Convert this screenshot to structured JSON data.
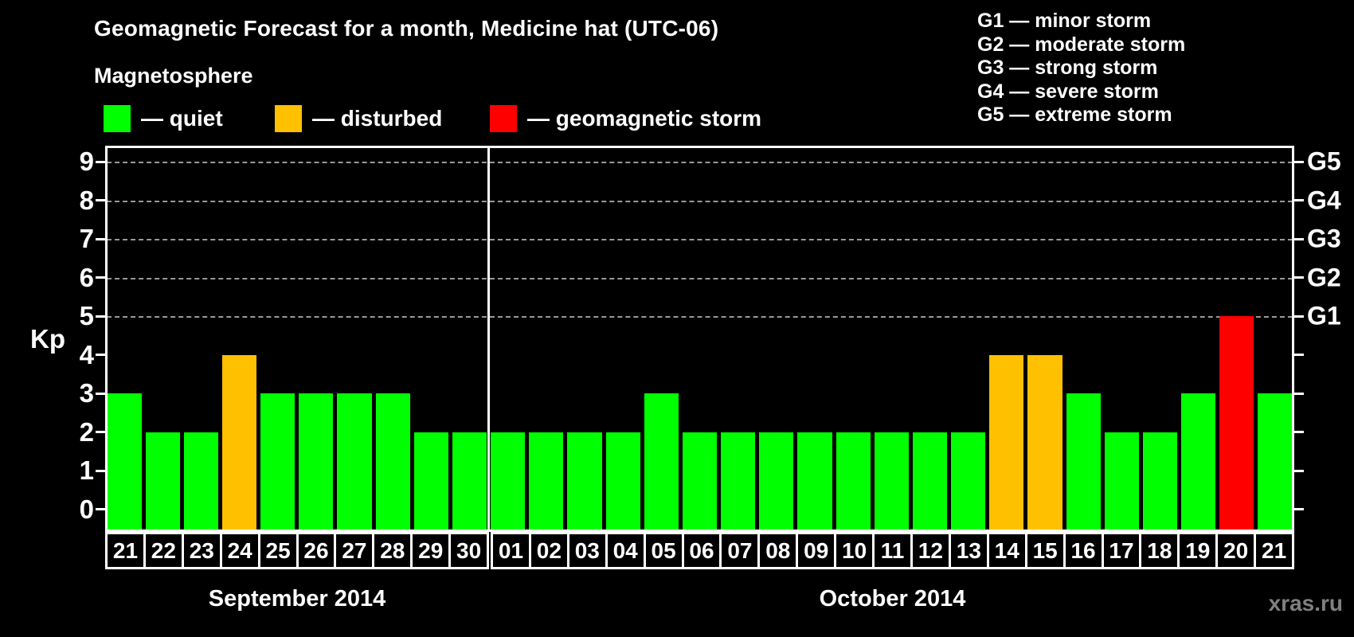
{
  "title": "Geomagnetic Forecast for a month, Medicine hat (UTC-06)",
  "subtitle": "Magnetosphere",
  "legend": {
    "items": [
      {
        "status": "quiet",
        "label": "— quiet",
        "color": "#00ff00"
      },
      {
        "status": "disturbed",
        "label": "— disturbed",
        "color": "#ffc000"
      },
      {
        "status": "storm",
        "label": "— geomagnetic storm",
        "color": "#ff0000"
      }
    ]
  },
  "g_legend": [
    "G1 — minor storm",
    "G2 — moderate storm",
    "G3 — strong storm",
    "G4 — severe storm",
    "G5 — extreme storm"
  ],
  "watermark": "xras.ru",
  "chart_data": {
    "type": "bar",
    "title": "Geomagnetic Forecast for a month, Medicine hat (UTC-06)",
    "ylabel": "Kp",
    "ylim": [
      0,
      9
    ],
    "y_ticks": [
      0,
      1,
      2,
      3,
      4,
      5,
      6,
      7,
      8,
      9
    ],
    "grid_levels": [
      5,
      6,
      7,
      8,
      9
    ],
    "grid_style": "dashed",
    "legend_position": "top-left",
    "right_axis_labels": [
      {
        "label": "G1",
        "level": 5
      },
      {
        "label": "G2",
        "level": 6
      },
      {
        "label": "G3",
        "level": 7
      },
      {
        "label": "G4",
        "level": 8
      },
      {
        "label": "G5",
        "level": 9
      }
    ],
    "color_map": {
      "quiet": "#00ff00",
      "disturbed": "#ffc000",
      "storm": "#ff0000"
    },
    "months": [
      {
        "label": "September 2014",
        "days": [
          "21",
          "22",
          "23",
          "24",
          "25",
          "26",
          "27",
          "28",
          "29",
          "30"
        ],
        "kp": [
          3,
          2,
          2,
          4,
          3,
          3,
          3,
          3,
          2,
          2
        ],
        "status": [
          "quiet",
          "quiet",
          "quiet",
          "disturbed",
          "quiet",
          "quiet",
          "quiet",
          "quiet",
          "quiet",
          "quiet"
        ]
      },
      {
        "label": "October 2014",
        "days": [
          "01",
          "02",
          "03",
          "04",
          "05",
          "06",
          "07",
          "08",
          "09",
          "10",
          "11",
          "12",
          "13",
          "14",
          "15",
          "16",
          "17",
          "18",
          "19",
          "20",
          "21"
        ],
        "kp": [
          2,
          2,
          2,
          2,
          3,
          2,
          2,
          2,
          2,
          2,
          2,
          2,
          2,
          4,
          4,
          3,
          2,
          2,
          3,
          5,
          3
        ],
        "status": [
          "quiet",
          "quiet",
          "quiet",
          "quiet",
          "quiet",
          "quiet",
          "quiet",
          "quiet",
          "quiet",
          "quiet",
          "quiet",
          "quiet",
          "quiet",
          "disturbed",
          "disturbed",
          "quiet",
          "quiet",
          "quiet",
          "quiet",
          "storm",
          "quiet"
        ]
      }
    ]
  }
}
